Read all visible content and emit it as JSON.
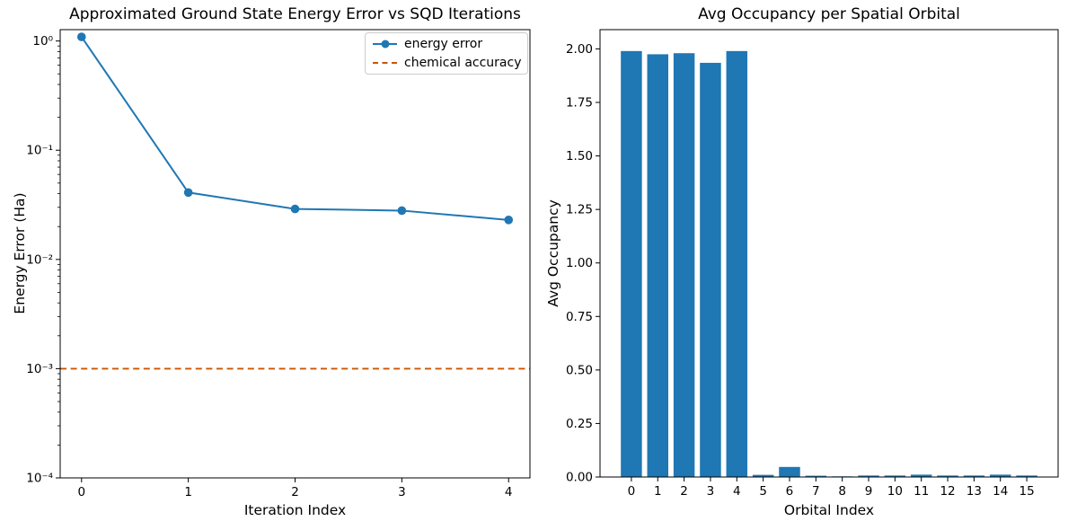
{
  "figure": {
    "background": "#ffffff",
    "line_color": "#1f77b4",
    "bar_color": "#1f77b4",
    "reference_color": "#cc5500"
  },
  "chart_data": [
    {
      "type": "line",
      "title": "Approximated Ground State Energy Error vs SQD Iterations",
      "xlabel": "Iteration Index",
      "ylabel": "Energy Error (Ha)",
      "yscale": "log",
      "x": [
        0,
        1,
        2,
        3,
        4
      ],
      "series": [
        {
          "name": "energy error",
          "color": "#1f77b4",
          "marker": "circle",
          "values": [
            1.09,
            0.041,
            0.029,
            0.028,
            0.023
          ]
        }
      ],
      "reference_line": {
        "name": "chemical accuracy",
        "value": 0.001,
        "color": "#cc5500",
        "style": "dashed"
      },
      "xlim": [
        -0.2,
        4.2
      ],
      "ylim": [
        0.0001,
        1.27
      ],
      "xtick_labels": [
        "0",
        "1",
        "2",
        "3",
        "4"
      ],
      "xtick_values": [
        0,
        1,
        2,
        3,
        4
      ],
      "ytick_labels": [
        "10⁰",
        "10⁻¹",
        "10⁻²",
        "10⁻³",
        "10⁻⁴"
      ],
      "ytick_values": [
        1,
        0.1,
        0.01,
        0.001,
        0.0001
      ],
      "legend_position": "upper right",
      "grid": false
    },
    {
      "type": "bar",
      "title": "Avg Occupancy per Spatial Orbital",
      "xlabel": "Orbital Index",
      "ylabel": "Avg Occupancy",
      "categories": [
        "0",
        "1",
        "2",
        "3",
        "4",
        "5",
        "6",
        "7",
        "8",
        "9",
        "10",
        "11",
        "12",
        "13",
        "14",
        "15"
      ],
      "values": [
        1.99,
        1.975,
        1.98,
        1.935,
        1.99,
        0.01,
        0.047,
        0.006,
        0.003,
        0.007,
        0.007,
        0.011,
        0.007,
        0.007,
        0.011,
        0.007
      ],
      "bar_color": "#1f77b4",
      "xlim": [
        -1.19,
        16.19
      ],
      "ylim": [
        0,
        2.09
      ],
      "ytick_labels": [
        "0.00",
        "0.25",
        "0.50",
        "0.75",
        "1.00",
        "1.25",
        "1.50",
        "1.75",
        "2.00"
      ],
      "ytick_values": [
        0,
        0.25,
        0.5,
        0.75,
        1.0,
        1.25,
        1.5,
        1.75,
        2.0
      ],
      "grid": false
    }
  ],
  "legend": {
    "entries": [
      {
        "label": "energy error"
      },
      {
        "label": "chemical accuracy"
      }
    ]
  }
}
